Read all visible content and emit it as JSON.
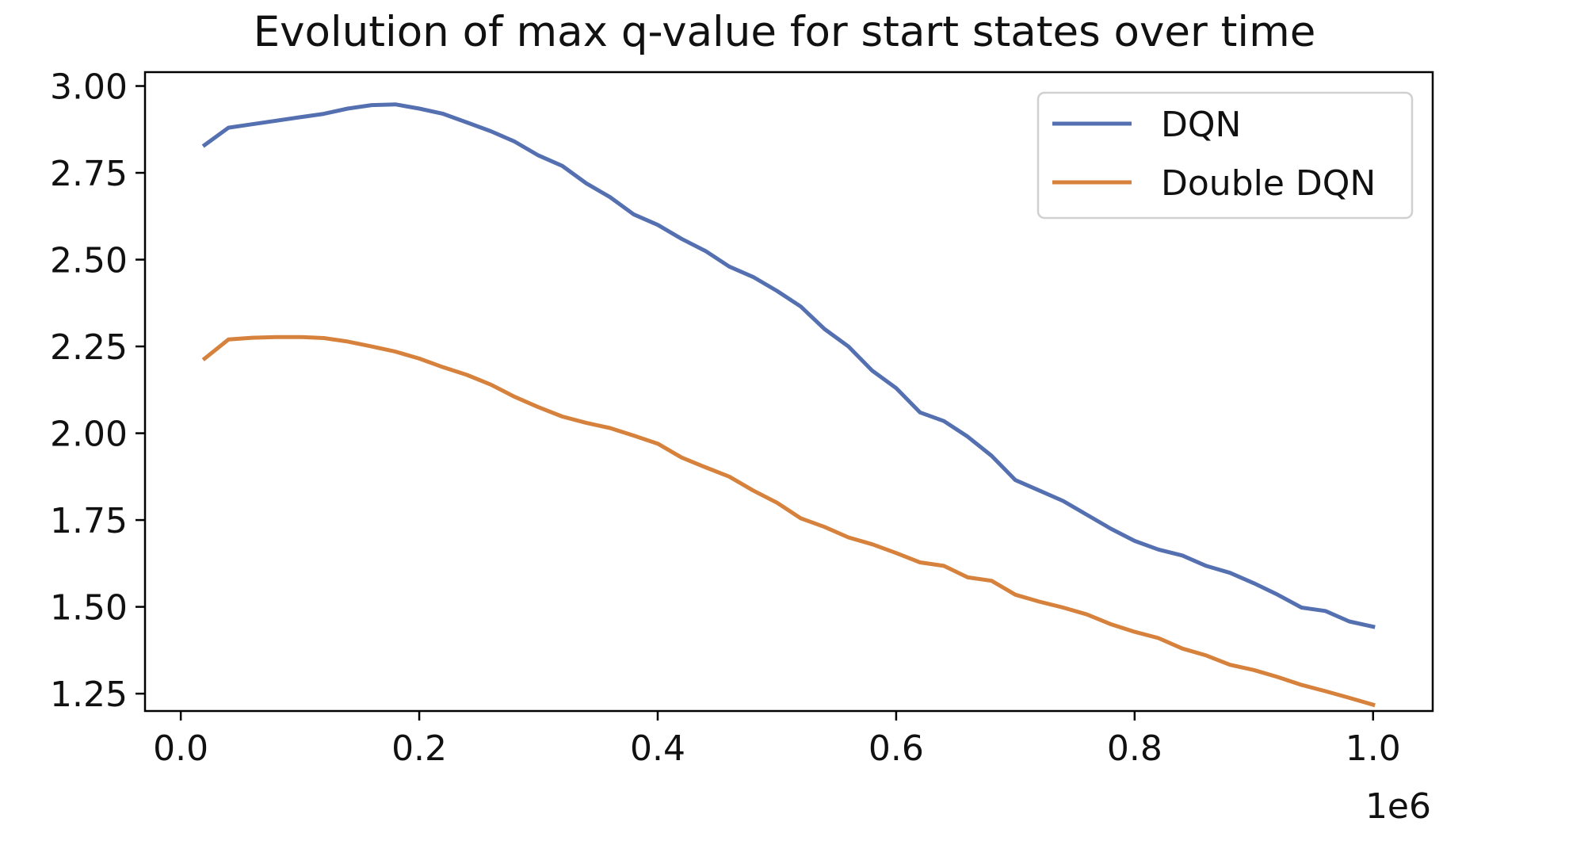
{
  "chart_data": {
    "type": "line",
    "title": "Evolution of max q-value for start states over time",
    "xlabel": "",
    "ylabel": "",
    "x_offset_label": "1e6",
    "xlim": [
      -0.03,
      1.05
    ],
    "ylim": [
      1.2,
      3.04
    ],
    "xticks": [
      0.0,
      0.2,
      0.4,
      0.6,
      0.8,
      1.0
    ],
    "xtick_labels": [
      "0.0",
      "0.2",
      "0.4",
      "0.6",
      "0.8",
      "1.0"
    ],
    "yticks": [
      1.25,
      1.5,
      1.75,
      2.0,
      2.25,
      2.5,
      2.75,
      3.0
    ],
    "ytick_labels": [
      "1.25",
      "1.50",
      "1.75",
      "2.00",
      "2.25",
      "2.50",
      "2.75",
      "3.00"
    ],
    "grid": false,
    "legend_position": "top-right",
    "x": [
      0.02,
      0.04,
      0.06,
      0.08,
      0.1,
      0.12,
      0.14,
      0.16,
      0.18,
      0.2,
      0.22,
      0.24,
      0.26,
      0.28,
      0.3,
      0.32,
      0.34,
      0.36,
      0.38,
      0.4,
      0.42,
      0.44,
      0.46,
      0.48,
      0.5,
      0.52,
      0.54,
      0.56,
      0.58,
      0.6,
      0.62,
      0.64,
      0.66,
      0.68,
      0.7,
      0.72,
      0.74,
      0.76,
      0.78,
      0.8,
      0.82,
      0.84,
      0.86,
      0.88,
      0.9,
      0.92,
      0.94,
      0.96,
      0.98,
      1.0
    ],
    "series": [
      {
        "name": "DQN",
        "color": "#5470b0",
        "values": [
          2.83,
          2.88,
          2.89,
          2.9,
          2.91,
          2.92,
          2.935,
          2.945,
          2.947,
          2.935,
          2.92,
          2.895,
          2.87,
          2.84,
          2.8,
          2.77,
          2.72,
          2.68,
          2.63,
          2.6,
          2.56,
          2.525,
          2.48,
          2.45,
          2.41,
          2.365,
          2.3,
          2.25,
          2.18,
          2.13,
          2.06,
          2.035,
          1.99,
          1.935,
          1.865,
          1.835,
          1.805,
          1.765,
          1.725,
          1.69,
          1.665,
          1.648,
          1.618,
          1.598,
          1.568,
          1.535,
          1.498,
          1.488,
          1.458,
          1.443
        ]
      },
      {
        "name": "Double DQN",
        "color": "#d6813c",
        "values": [
          2.215,
          2.27,
          2.275,
          2.277,
          2.277,
          2.274,
          2.264,
          2.25,
          2.235,
          2.215,
          2.19,
          2.168,
          2.14,
          2.105,
          2.075,
          2.048,
          2.03,
          2.015,
          1.993,
          1.97,
          1.93,
          1.902,
          1.875,
          1.835,
          1.8,
          1.755,
          1.73,
          1.7,
          1.68,
          1.655,
          1.628,
          1.618,
          1.585,
          1.575,
          1.535,
          1.515,
          1.498,
          1.478,
          1.45,
          1.428,
          1.41,
          1.38,
          1.36,
          1.333,
          1.318,
          1.298,
          1.275,
          1.257,
          1.238,
          1.218
        ]
      }
    ]
  }
}
